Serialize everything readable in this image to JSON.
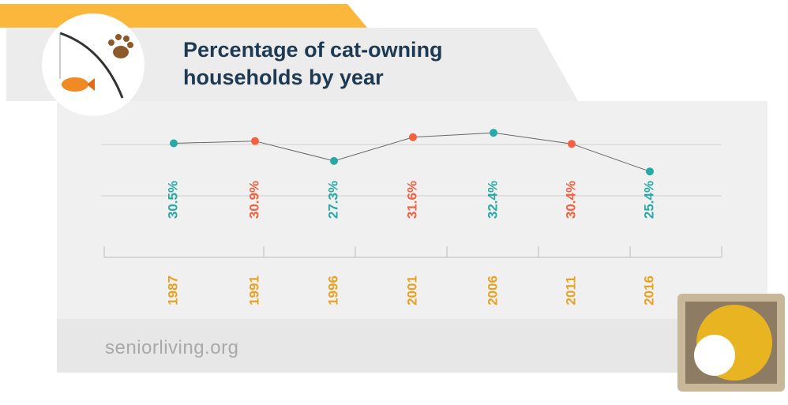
{
  "chart_data": {
    "type": "line",
    "title": "Percentage of cat-owning households by year",
    "categories": [
      "1987",
      "1991",
      "1996",
      "2001",
      "2006",
      "2011",
      "2016"
    ],
    "values": [
      30.5,
      30.9,
      27.3,
      31.6,
      32.4,
      30.4,
      25.4
    ],
    "value_labels": [
      "30.5%",
      "30.9%",
      "27.3%",
      "31.6%",
      "32.4%",
      "30.4%",
      "25.4%"
    ],
    "point_colors": [
      "#27aaa5",
      "#f2603f",
      "#27aaa5",
      "#f2603f",
      "#27aaa5",
      "#f2603f",
      "#27aaa5"
    ],
    "line_color": "#666666",
    "category_color": "#e9a11f",
    "ylim": [
      25,
      35
    ]
  },
  "footer": {
    "logo": "seniorliving.org"
  }
}
